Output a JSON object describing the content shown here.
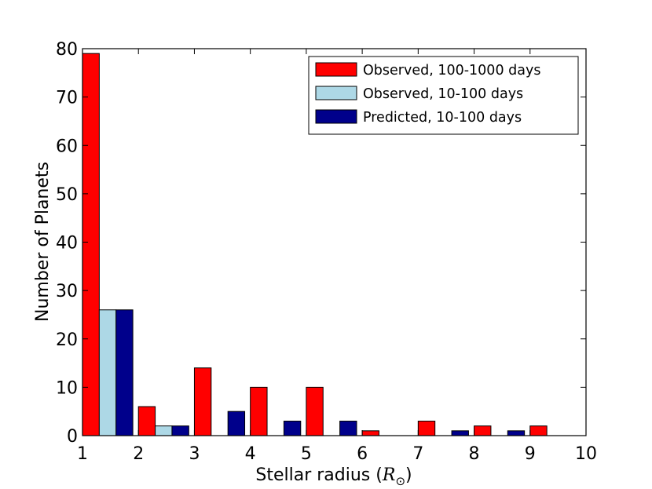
{
  "chart_data": {
    "type": "bar",
    "title": "",
    "xlabel": "Stellar radius",
    "xlabel_unit_symbol": "R",
    "xlabel_unit_subscript": "⊙",
    "ylabel": "Number of Planets",
    "xlim": [
      1,
      10
    ],
    "ylim": [
      0,
      80
    ],
    "x_ticks": [
      "1",
      "2",
      "3",
      "4",
      "5",
      "6",
      "7",
      "8",
      "9",
      "10"
    ],
    "y_ticks": [
      "0",
      "10",
      "20",
      "30",
      "40",
      "50",
      "60",
      "70",
      "80"
    ],
    "grid": false,
    "legend_position": "top-right",
    "bin_edges": [
      1,
      2,
      3,
      4,
      5,
      6,
      7,
      8,
      9,
      10
    ],
    "series": [
      {
        "name": "Observed, 100-1000 days",
        "color": "#ff0000",
        "values": [
          79,
          6,
          14,
          10,
          10,
          1,
          3,
          2,
          2
        ]
      },
      {
        "name": "Observed, 10-100 days",
        "color": "#add8e6",
        "values": [
          26,
          2,
          0,
          0,
          0,
          0,
          0,
          0,
          0
        ]
      },
      {
        "name": "Predicted, 10-100 days",
        "color": "#00008b",
        "values": [
          26,
          2,
          5,
          3,
          3,
          0,
          1,
          1,
          0
        ]
      }
    ]
  }
}
